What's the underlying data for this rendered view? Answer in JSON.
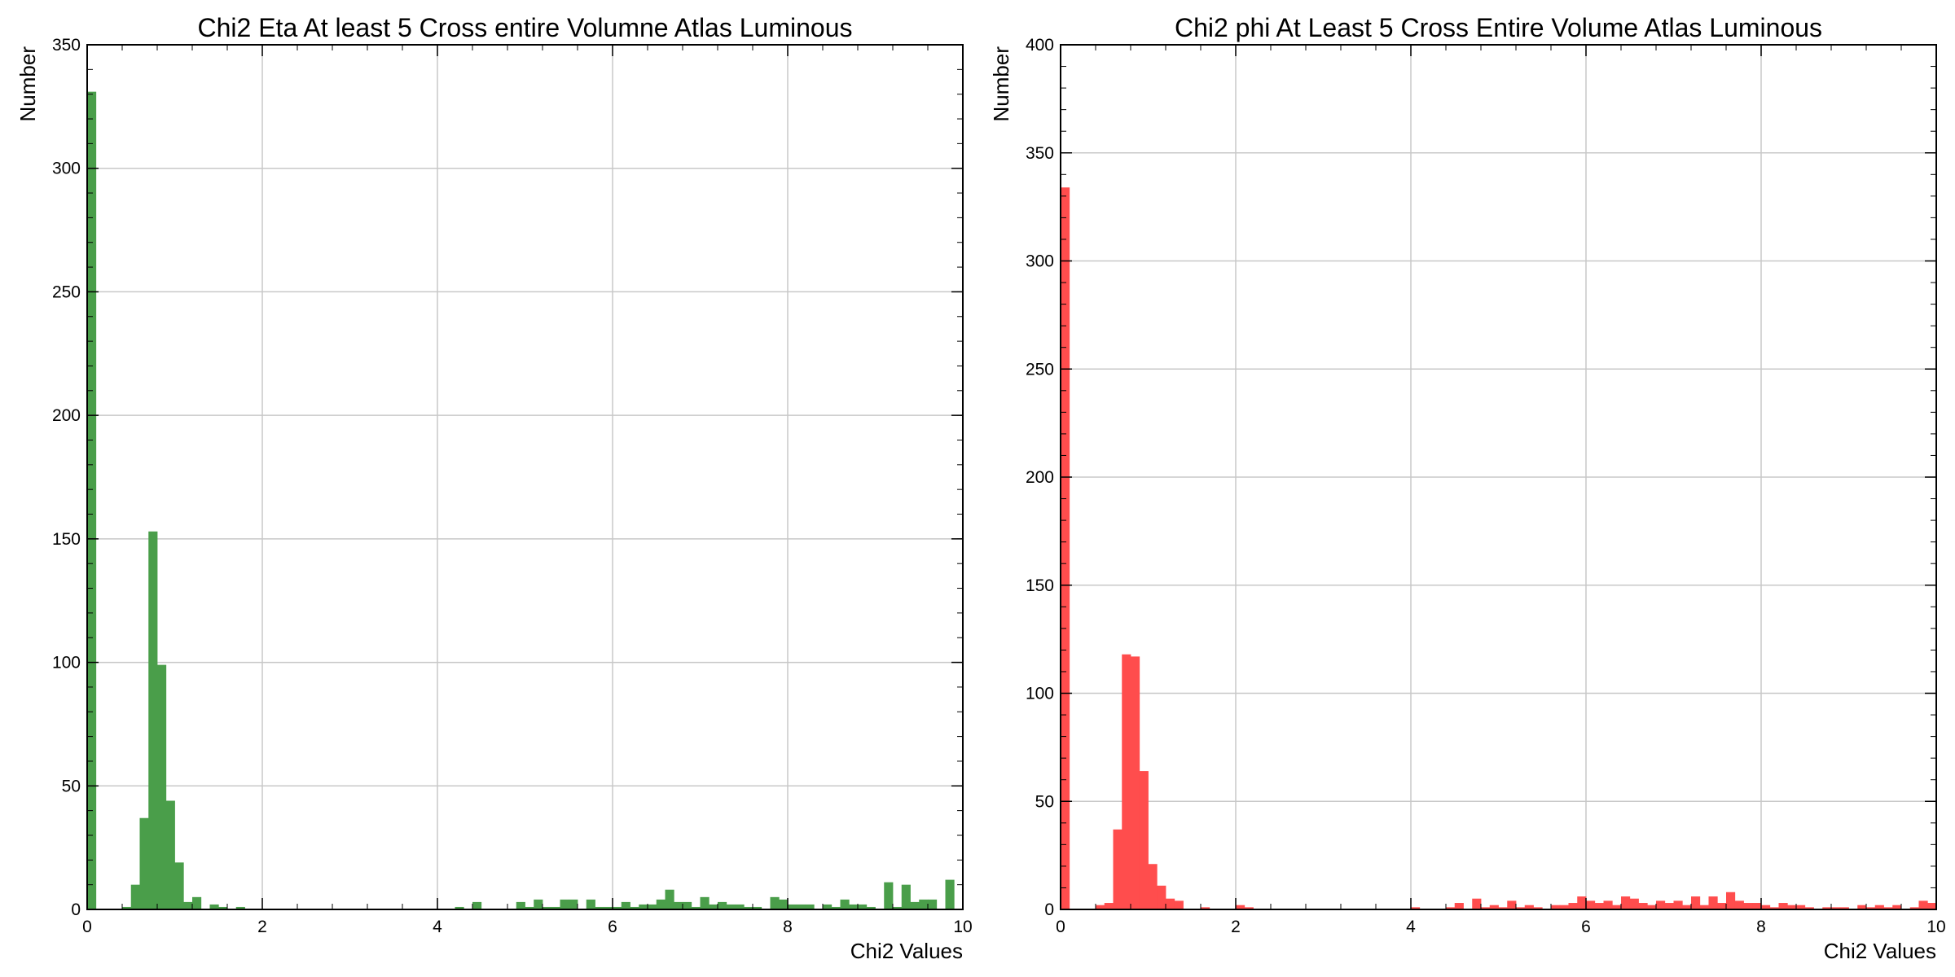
{
  "chart_data": [
    {
      "type": "bar",
      "title": "Chi2 Eta At least 5 Cross entire Volumne Atlas Luminous",
      "xlabel": "Chi2 Values",
      "ylabel": "Number",
      "xlim": [
        0,
        10
      ],
      "ylim": [
        0,
        350
      ],
      "xticks": [
        0,
        2,
        4,
        6,
        8,
        10
      ],
      "yticks": [
        0,
        50,
        100,
        150,
        200,
        250,
        300,
        350
      ],
      "grid": true,
      "color": "#4a9e4a",
      "bin_width": 0.1,
      "x": [
        0.0,
        0.1,
        0.2,
        0.3,
        0.4,
        0.5,
        0.6,
        0.7,
        0.8,
        0.9,
        1.0,
        1.1,
        1.2,
        1.3,
        1.4,
        1.5,
        1.6,
        1.7,
        1.8,
        1.9,
        2.0,
        2.1,
        2.2,
        2.3,
        2.4,
        2.5,
        2.6,
        2.7,
        2.8,
        2.9,
        3.0,
        3.1,
        3.2,
        3.3,
        3.4,
        3.5,
        3.6,
        3.7,
        3.8,
        3.9,
        4.0,
        4.1,
        4.2,
        4.3,
        4.4,
        4.5,
        4.6,
        4.7,
        4.8,
        4.9,
        5.0,
        5.1,
        5.2,
        5.3,
        5.4,
        5.5,
        5.6,
        5.7,
        5.8,
        5.9,
        6.0,
        6.1,
        6.2,
        6.3,
        6.4,
        6.5,
        6.6,
        6.7,
        6.8,
        6.9,
        7.0,
        7.1,
        7.2,
        7.3,
        7.4,
        7.5,
        7.6,
        7.7,
        7.8,
        7.9,
        8.0,
        8.1,
        8.2,
        8.3,
        8.4,
        8.5,
        8.6,
        8.7,
        8.8,
        8.9,
        9.0,
        9.1,
        9.2,
        9.3,
        9.4,
        9.5,
        9.6,
        9.7,
        9.8,
        9.9
      ],
      "values": [
        331,
        0,
        0,
        0,
        1,
        10,
        37,
        153,
        99,
        44,
        19,
        3,
        5,
        0,
        2,
        1,
        0,
        1,
        0,
        0,
        0,
        0,
        0,
        0,
        0,
        0,
        0,
        0,
        0,
        0,
        0,
        0,
        0,
        0,
        0,
        0,
        0,
        0,
        0,
        0,
        0,
        0,
        1,
        0,
        3,
        0,
        0,
        0,
        0,
        3,
        1,
        4,
        1,
        1,
        4,
        4,
        0,
        4,
        1,
        1,
        1,
        3,
        1,
        2,
        2,
        4,
        8,
        3,
        3,
        1,
        5,
        2,
        3,
        2,
        2,
        1,
        1,
        0,
        5,
        4,
        2,
        2,
        2,
        0,
        2,
        1,
        4,
        2,
        2,
        1,
        0,
        11,
        1,
        10,
        3,
        4,
        4,
        0,
        12,
        0
      ]
    },
    {
      "type": "bar",
      "title": "Chi2 phi At Least 5 Cross Entire Volume Atlas Luminous",
      "xlabel": "Chi2 Values",
      "ylabel": "Number",
      "xlim": [
        0,
        10
      ],
      "ylim": [
        0,
        400
      ],
      "xticks": [
        0,
        2,
        4,
        6,
        8,
        10
      ],
      "yticks": [
        0,
        50,
        100,
        150,
        200,
        250,
        300,
        350,
        400
      ],
      "grid": true,
      "color": "#ff4d4d",
      "bin_width": 0.1,
      "x": [
        0.0,
        0.1,
        0.2,
        0.3,
        0.4,
        0.5,
        0.6,
        0.7,
        0.8,
        0.9,
        1.0,
        1.1,
        1.2,
        1.3,
        1.4,
        1.5,
        1.6,
        1.7,
        1.8,
        1.9,
        2.0,
        2.1,
        2.2,
        2.3,
        2.4,
        2.5,
        2.6,
        2.7,
        2.8,
        2.9,
        3.0,
        3.1,
        3.2,
        3.3,
        3.4,
        3.5,
        3.6,
        3.7,
        3.8,
        3.9,
        4.0,
        4.1,
        4.2,
        4.3,
        4.4,
        4.5,
        4.6,
        4.7,
        4.8,
        4.9,
        5.0,
        5.1,
        5.2,
        5.3,
        5.4,
        5.5,
        5.6,
        5.7,
        5.8,
        5.9,
        6.0,
        6.1,
        6.2,
        6.3,
        6.4,
        6.5,
        6.6,
        6.7,
        6.8,
        6.9,
        7.0,
        7.1,
        7.2,
        7.3,
        7.4,
        7.5,
        7.6,
        7.7,
        7.8,
        7.9,
        8.0,
        8.1,
        8.2,
        8.3,
        8.4,
        8.5,
        8.6,
        8.7,
        8.8,
        8.9,
        9.0,
        9.1,
        9.2,
        9.3,
        9.4,
        9.5,
        9.6,
        9.7,
        9.8,
        9.9
      ],
      "values": [
        334,
        0,
        0,
        0,
        2,
        3,
        37,
        118,
        117,
        64,
        21,
        11,
        5,
        4,
        0,
        0,
        1,
        0,
        0,
        0,
        2,
        1,
        0,
        0,
        0,
        0,
        0,
        0,
        0,
        0,
        0,
        0,
        0,
        0,
        0,
        0,
        0,
        0,
        0,
        0,
        1,
        0,
        0,
        0,
        1,
        3,
        0,
        5,
        1,
        2,
        1,
        4,
        1,
        2,
        1,
        0,
        2,
        2,
        3,
        6,
        4,
        3,
        4,
        2,
        6,
        5,
        3,
        2,
        4,
        3,
        4,
        2,
        6,
        2,
        6,
        3,
        8,
        4,
        3,
        3,
        2,
        1,
        3,
        2,
        2,
        1,
        0,
        1,
        1,
        1,
        0,
        2,
        1,
        2,
        1,
        2,
        0,
        1,
        4,
        3
      ]
    }
  ]
}
